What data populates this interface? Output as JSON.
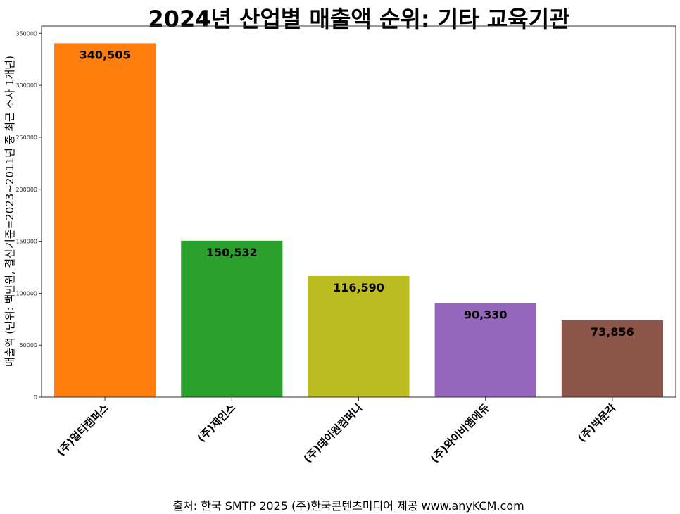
{
  "chart_data": {
    "type": "bar",
    "title": "2024년 산업별 매출액 순위: 기타 교육기관",
    "ylabel": "매출액 (단위: 백만원, 결산기준=2023~2011년 중 최근 조사 1개년)",
    "xlabel": "",
    "categories": [
      "(주)멀티캠퍼스",
      "(주)제인스",
      "(주)데이원컴퍼니",
      "(주)와이비엠에듀",
      "(주)박문각"
    ],
    "values": [
      340505,
      150532,
      116590,
      90330,
      73856
    ],
    "value_labels": [
      "340,505",
      "150,532",
      "116,590",
      "90,330",
      "73,856"
    ],
    "colors": [
      "#ff7f0e",
      "#2ca02c",
      "#bcbd22",
      "#9467bd",
      "#8c564b"
    ],
    "ylim": [
      0,
      357000
    ],
    "yticks": [
      0,
      50000,
      100000,
      150000,
      200000,
      250000,
      300000,
      350000
    ],
    "ytick_labels": [
      "0",
      "50000",
      "100000",
      "150000",
      "200000",
      "250000",
      "300000",
      "350000"
    ],
    "grid": false,
    "legend": "none"
  },
  "footer": "출처: 한국 SMTP 2025  (주)한국콘텐츠미디어 제공  www.anyKCM.com"
}
